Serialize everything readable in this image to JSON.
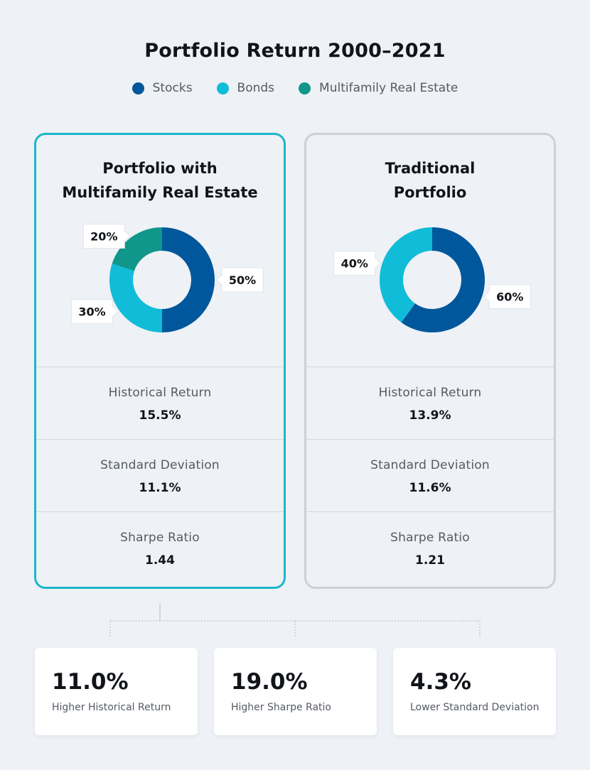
{
  "title": "Portfolio Return 2000–2021",
  "legend": [
    {
      "label": "Stocks",
      "color": "#00579b"
    },
    {
      "label": "Bonds",
      "color": "#10bcd8"
    },
    {
      "label": "Multifamily Real Estate",
      "color": "#10968a"
    }
  ],
  "chart_data": [
    {
      "type": "pie",
      "title": "Portfolio with\nMultifamily Real Estate",
      "categories": [
        "Stocks",
        "Bonds",
        "Multifamily Real Estate"
      ],
      "values": [
        50,
        30,
        20
      ],
      "labels": [
        "50%",
        "30%",
        "20%"
      ],
      "stats": [
        {
          "label": "Historical Return",
          "value": "15.5%"
        },
        {
          "label": "Standard Deviation",
          "value": "11.1%"
        },
        {
          "label": "Sharpe Ratio",
          "value": "1.44"
        }
      ]
    },
    {
      "type": "pie",
      "title": "Traditional\nPortfolio",
      "categories": [
        "Stocks",
        "Bonds"
      ],
      "values": [
        60,
        40
      ],
      "labels": [
        "60%",
        "40%"
      ],
      "stats": [
        {
          "label": "Historical Return",
          "value": "13.9%"
        },
        {
          "label": "Standard Deviation",
          "value": "11.6%"
        },
        {
          "label": "Sharpe Ratio",
          "value": "1.21"
        }
      ]
    }
  ],
  "summary": [
    {
      "value": "11.0%",
      "label": "Higher Historical Return"
    },
    {
      "value": "19.0%",
      "label": "Higher Sharpe Ratio"
    },
    {
      "value": "4.3%",
      "label": "Lower Standard Deviation"
    }
  ]
}
